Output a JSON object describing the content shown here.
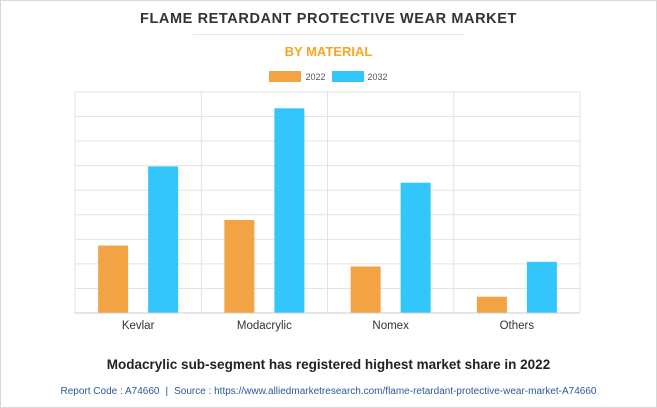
{
  "header": {
    "title": "FLAME RETARDANT PROTECTIVE WEAR MARKET",
    "subtitle": "BY MATERIAL"
  },
  "colors": {
    "series_2022": "#f2a444",
    "series_2032": "#33c6fb",
    "subtitle": "#f5a623",
    "grid": "#e3e3e3"
  },
  "chart_data": {
    "type": "bar",
    "title": "FLAME RETARDANT PROTECTIVE WEAR MARKET",
    "subtitle": "BY MATERIAL",
    "categories": [
      "Kevlar",
      "Modacrylic",
      "Nomex",
      "Others"
    ],
    "series": [
      {
        "name": "2022",
        "values": [
          2.9,
          4.0,
          2.0,
          0.7
        ]
      },
      {
        "name": "2032",
        "values": [
          6.3,
          8.8,
          5.6,
          2.2
        ]
      }
    ],
    "xlabel": "",
    "ylabel": "",
    "ylim": [
      0,
      9.5
    ],
    "y_gridlines": 9,
    "grid": true,
    "y_tick_labels_visible": false,
    "legend_position": "top-center"
  },
  "footer": {
    "note": "Modacrylic sub-segment has registered highest market share in 2022",
    "report_code": "Report Code : A74660",
    "separator": "|",
    "source": "Source : https://www.alliedmarketresearch.com/flame-retardant-protective-wear-market-A74660"
  }
}
